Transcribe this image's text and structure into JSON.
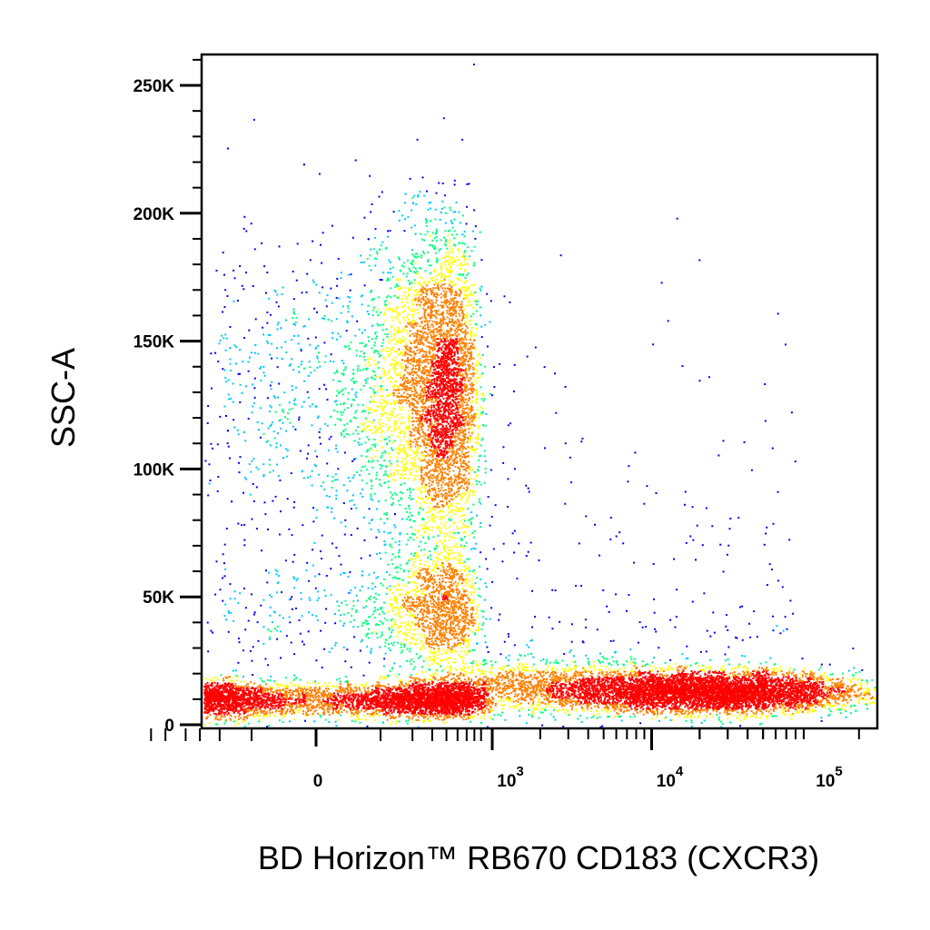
{
  "chart_data": {
    "type": "scatter",
    "title": "",
    "xlabel": "BD Horizon™ RB670 CD183 (CXCR3)",
    "ylabel": "SSC-A",
    "x_scale": "biexponential",
    "x_ticks": [
      {
        "value": 0,
        "label": "0"
      },
      {
        "value": 1000,
        "label": "10",
        "exponent": "3"
      },
      {
        "value": 10000,
        "label": "10",
        "exponent": "4"
      },
      {
        "value": 100000,
        "label": "10",
        "exponent": "5"
      }
    ],
    "y_ticks": [
      {
        "value": 0,
        "label": "0"
      },
      {
        "value": 50000,
        "label": "50K"
      },
      {
        "value": 100000,
        "label": "100K"
      },
      {
        "value": 150000,
        "label": "150K"
      },
      {
        "value": 200000,
        "label": "200K"
      },
      {
        "value": 250000,
        "label": "250K"
      }
    ],
    "ylim": [
      -3000,
      262000
    ],
    "grid": false,
    "color_map": [
      "#0000ff",
      "#00c8ff",
      "#00ff80",
      "#ffff00",
      "#ff8000",
      "#ff0000"
    ],
    "populations": [
      {
        "x_center": 0,
        "y_center": 10000,
        "x_spread": 350,
        "y_spread": 3500,
        "density": "high"
      },
      {
        "x_center": 300,
        "y_center": 130000,
        "x_spread": 200,
        "y_spread": 30000,
        "density": "high"
      },
      {
        "x_center": 300,
        "y_center": 45000,
        "x_spread": 200,
        "y_spread": 12000,
        "density": "medium"
      },
      {
        "x_center": 2500,
        "y_center": 15000,
        "x_spread": 2000,
        "y_spread": 5000,
        "density": "medium"
      },
      {
        "x_center": 25000,
        "y_center": 13000,
        "x_spread": 20000,
        "y_spread": 4000,
        "density": "high"
      }
    ]
  }
}
